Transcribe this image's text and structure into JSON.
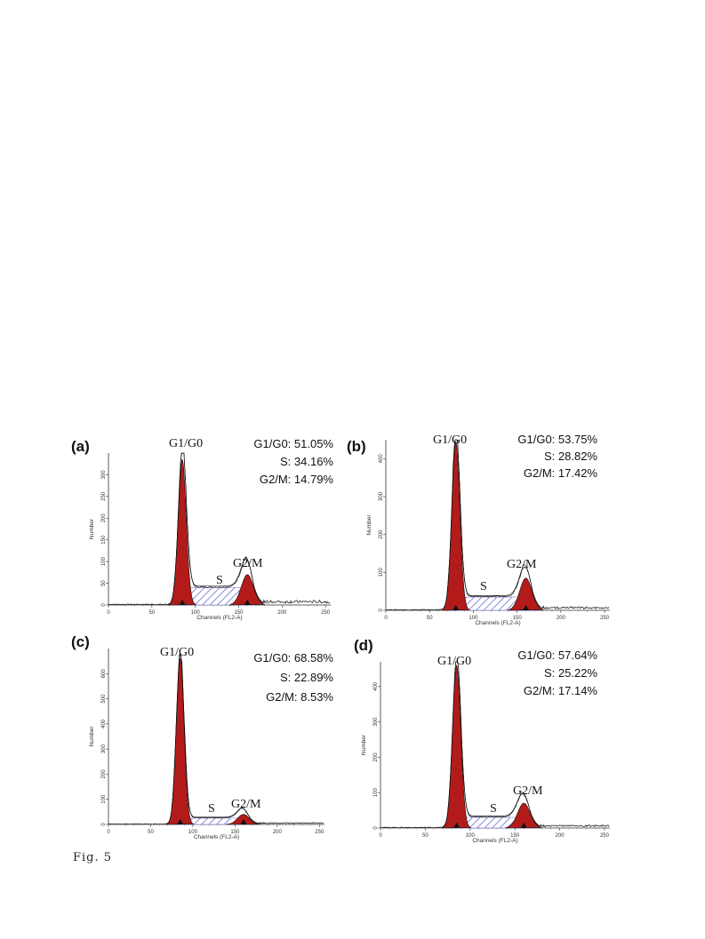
{
  "figure_caption": "Fig. 5",
  "chart_data": [
    {
      "type": "area",
      "panel": "(a)",
      "xlabel": "Channels (FL2-A)",
      "ylabel": "Number",
      "x_ticks": [
        0,
        50,
        100,
        150,
        200,
        250
      ],
      "y_ticks": [
        0,
        50,
        100,
        150,
        200,
        250,
        300
      ],
      "xlim": [
        0,
        256
      ],
      "ylim": [
        0,
        350
      ],
      "peaks": {
        "g1_channel": 85,
        "g1_height": 335,
        "g2_channel": 160,
        "g2_height": 70,
        "s_level": 40
      },
      "phase_labels": {
        "g1": "G1/G0",
        "s": "S",
        "g2": "G2/M"
      },
      "stats": [
        "G1/G0: 51.05%",
        "S: 34.16%",
        "G2/M: 14.79%"
      ]
    },
    {
      "type": "area",
      "panel": "(b)",
      "xlabel": "Channels (FL2-A)",
      "ylabel": "Number",
      "x_ticks": [
        0,
        50,
        100,
        150,
        200,
        250
      ],
      "y_ticks": [
        0,
        100,
        200,
        300,
        400
      ],
      "xlim": [
        0,
        256
      ],
      "ylim": [
        0,
        450
      ],
      "peaks": {
        "g1_channel": 80,
        "g1_height": 445,
        "g2_channel": 160,
        "g2_height": 85,
        "s_level": 35
      },
      "phase_labels": {
        "g1": "G1/G0",
        "s": "S",
        "g2": "G2/M"
      },
      "stats": [
        "G1/G0: 53.75%",
        "S: 28.82%",
        "G2/M: 17.42%"
      ]
    },
    {
      "type": "area",
      "panel": "(c)",
      "xlabel": "Channels (FL2-A)",
      "ylabel": "Number",
      "x_ticks": [
        0,
        50,
        100,
        150,
        200,
        250
      ],
      "y_ticks": [
        0,
        100,
        200,
        300,
        400,
        500,
        600
      ],
      "xlim": [
        0,
        256
      ],
      "ylim": [
        0,
        700
      ],
      "peaks": {
        "g1_channel": 85,
        "g1_height": 660,
        "g2_channel": 160,
        "g2_height": 40,
        "s_level": 25
      },
      "phase_labels": {
        "g1": "G1/G0",
        "s": "S",
        "g2": "G2/M"
      },
      "stats": [
        "G1/G0: 68.58%",
        "S: 22.89%",
        "G2/M: 8.53%"
      ]
    },
    {
      "type": "area",
      "panel": "(d)",
      "xlabel": "Channels (FL2-A)",
      "ylabel": "Number",
      "x_ticks": [
        0,
        50,
        100,
        150,
        200,
        250
      ],
      "y_ticks": [
        0,
        100,
        200,
        300,
        400
      ],
      "xlim": [
        0,
        256
      ],
      "ylim": [
        0,
        470
      ],
      "peaks": {
        "g1_channel": 85,
        "g1_height": 460,
        "g2_channel": 160,
        "g2_height": 70,
        "s_level": 30
      },
      "phase_labels": {
        "g1": "G1/G0",
        "s": "S",
        "g2": "G2/M"
      },
      "stats": [
        "G1/G0: 57.64%",
        "S: 25.22%",
        "G2/M: 17.14%"
      ]
    }
  ],
  "colors": {
    "peak_fill": "#b31b1b",
    "s_hatch": "#6a6ad8",
    "outline": "#111111"
  }
}
